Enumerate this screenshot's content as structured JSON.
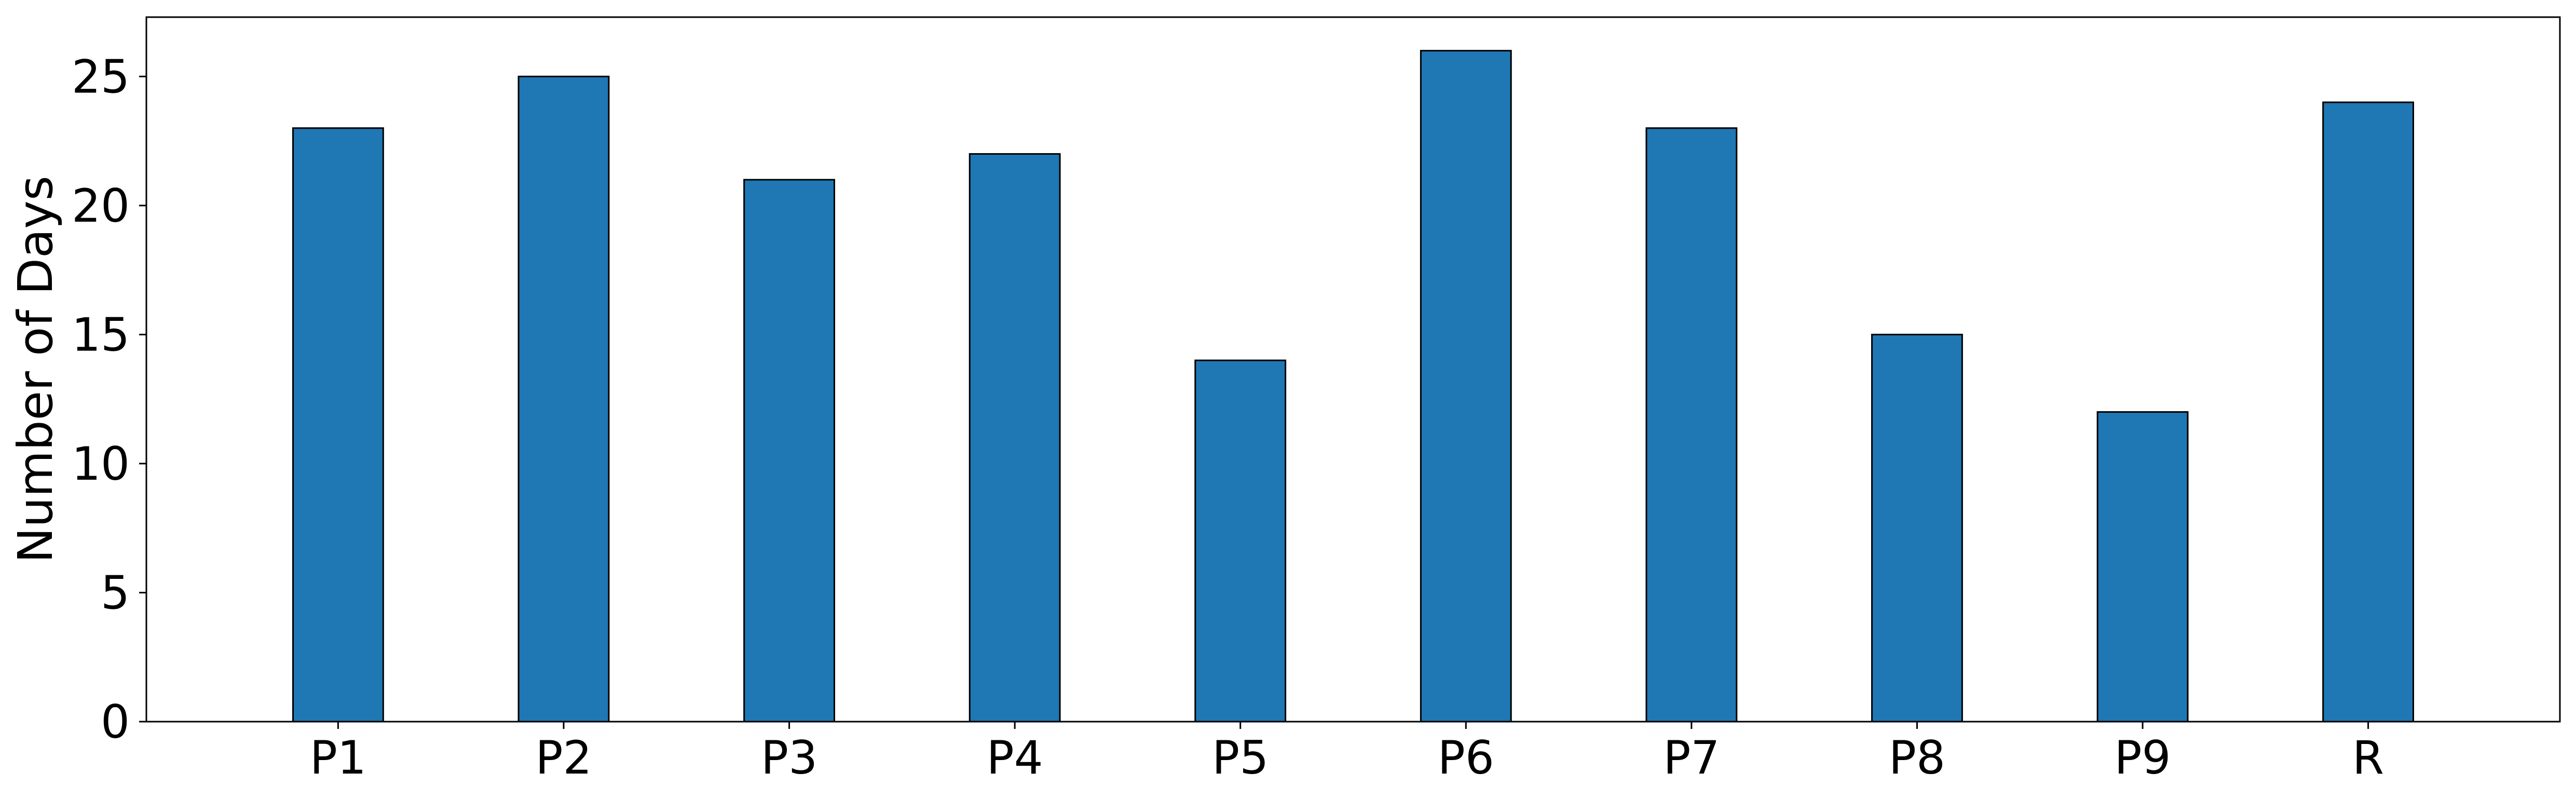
{
  "colors": {
    "bar_fill": "#1f77b4",
    "bar_edge": "#000000",
    "axis": "#000000",
    "background": "#ffffff"
  },
  "chart_data": {
    "type": "bar",
    "title": "",
    "xlabel": "",
    "ylabel": "Number of Days",
    "categories": [
      "P1",
      "P2",
      "P3",
      "P4",
      "P5",
      "P6",
      "P7",
      "P8",
      "P9",
      "R"
    ],
    "values": [
      23,
      25,
      21,
      22,
      14,
      26,
      23,
      15,
      12,
      24
    ],
    "ylim": [
      0,
      27.3
    ],
    "yticks": [
      0,
      5,
      10,
      15,
      20,
      25
    ],
    "grid": false,
    "legend": "none"
  }
}
